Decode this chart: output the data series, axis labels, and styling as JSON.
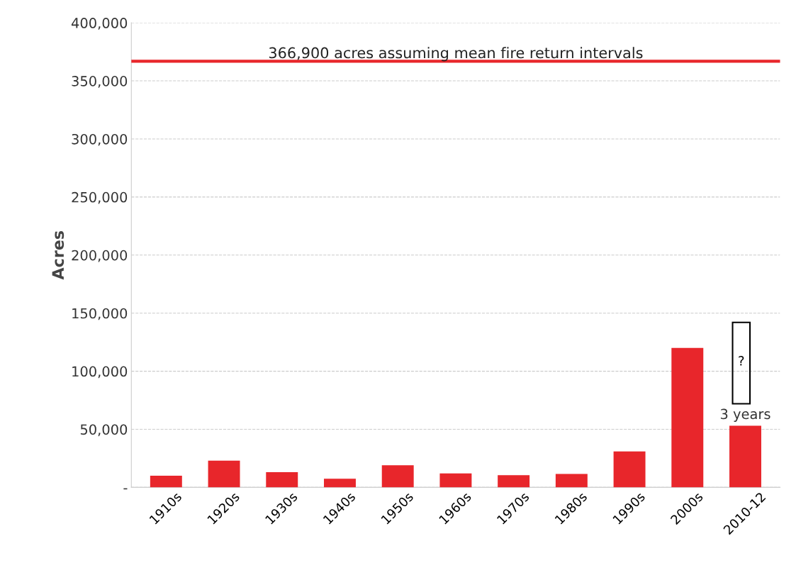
{
  "chart_data": {
    "type": "bar",
    "ylabel": "Acres",
    "categories": [
      "1910s",
      "1920s",
      "1930s",
      "1940s",
      "1950s",
      "1960s",
      "1970s",
      "1980s",
      "1990s",
      "2000s",
      "2010-12"
    ],
    "values": [
      10000,
      23000,
      13000,
      7500,
      19000,
      12000,
      10500,
      11500,
      31000,
      120000,
      53000
    ],
    "color": "#e8262b",
    "ylim": [
      0,
      400000
    ],
    "yticks": [
      {
        "value": 0,
        "label": "-"
      },
      {
        "value": 50000,
        "label": "50,000"
      },
      {
        "value": 100000,
        "label": "100,000"
      },
      {
        "value": 150000,
        "label": "150,000"
      },
      {
        "value": 200000,
        "label": "200,000"
      },
      {
        "value": 250000,
        "label": "250,000"
      },
      {
        "value": 300000,
        "label": "300,000"
      },
      {
        "value": 350000,
        "label": "350,000"
      },
      {
        "value": 400000,
        "label": "400,000"
      }
    ],
    "grid": "y",
    "ref_lines": [
      {
        "axis": "y",
        "value": 366900,
        "label": "366,900 acres assuming mean fire return intervals",
        "color": "#e8262b"
      }
    ],
    "annotations": [
      {
        "text": "3 years",
        "x": "2010-12",
        "y": 53000
      },
      "?"
    ]
  }
}
